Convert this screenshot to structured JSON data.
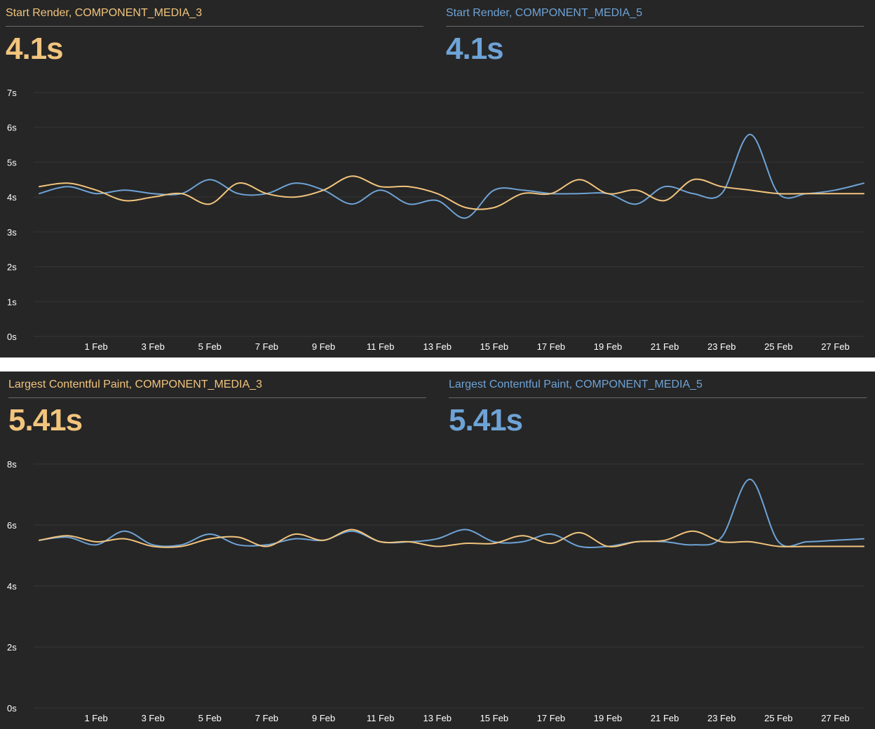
{
  "colors": {
    "background": "#262626",
    "series_a": "#f2c47d",
    "series_b": "#6ea3d6",
    "gridline": "#353535"
  },
  "panels": [
    {
      "metrics": [
        {
          "title": "Start Render, COMPONENT_MEDIA_3",
          "value": "4.1s",
          "color": "#f2c47d"
        },
        {
          "title": "Start Render, COMPONENT_MEDIA_5",
          "value": "4.1s",
          "color": "#6ea3d6"
        }
      ]
    },
    {
      "metrics": [
        {
          "title": "Largest Contentful Paint, COMPONENT_MEDIA_3",
          "value": "5.41s",
          "color": "#f2c47d"
        },
        {
          "title": "Largest Contentful Paint, COMPONENT_MEDIA_5",
          "value": "5.41s",
          "color": "#6ea3d6"
        }
      ]
    }
  ],
  "chart_data": [
    {
      "type": "line",
      "x": [
        "30 Jan",
        "31 Jan",
        "1 Feb",
        "2 Feb",
        "3 Feb",
        "4 Feb",
        "5 Feb",
        "6 Feb",
        "7 Feb",
        "8 Feb",
        "9 Feb",
        "10 Feb",
        "11 Feb",
        "12 Feb",
        "13 Feb",
        "14 Feb",
        "15 Feb",
        "16 Feb",
        "17 Feb",
        "18 Feb",
        "19 Feb",
        "20 Feb",
        "21 Feb",
        "22 Feb",
        "23 Feb",
        "24 Feb",
        "25 Feb",
        "26 Feb",
        "27 Feb",
        "28 Feb"
      ],
      "x_ticks": [
        "1 Feb",
        "3 Feb",
        "5 Feb",
        "7 Feb",
        "9 Feb",
        "11 Feb",
        "13 Feb",
        "15 Feb",
        "17 Feb",
        "19 Feb",
        "21 Feb",
        "23 Feb",
        "25 Feb",
        "27 Feb"
      ],
      "y_ticks": [
        "0s",
        "1s",
        "2s",
        "3s",
        "4s",
        "5s",
        "6s",
        "7s"
      ],
      "ylim": [
        0,
        7
      ],
      "grid": true,
      "series": [
        {
          "name": "COMPONENT_MEDIA_3",
          "color": "#f2c47d",
          "values": [
            4.3,
            4.4,
            4.2,
            3.9,
            4.0,
            4.1,
            3.8,
            4.4,
            4.1,
            4.0,
            4.2,
            4.6,
            4.3,
            4.3,
            4.1,
            3.7,
            3.7,
            4.1,
            4.1,
            4.5,
            4.1,
            4.2,
            3.9,
            4.5,
            4.3,
            4.2,
            4.1,
            4.1,
            4.1,
            4.1
          ]
        },
        {
          "name": "COMPONENT_MEDIA_5",
          "color": "#6ea3d6",
          "values": [
            4.1,
            4.3,
            4.1,
            4.2,
            4.1,
            4.1,
            4.5,
            4.1,
            4.1,
            4.4,
            4.2,
            3.8,
            4.2,
            3.8,
            3.9,
            3.4,
            4.2,
            4.2,
            4.1,
            4.1,
            4.1,
            3.8,
            4.3,
            4.1,
            4.1,
            5.8,
            4.1,
            4.1,
            4.2,
            4.4
          ]
        }
      ]
    },
    {
      "type": "line",
      "x": [
        "30 Jan",
        "31 Jan",
        "1 Feb",
        "2 Feb",
        "3 Feb",
        "4 Feb",
        "5 Feb",
        "6 Feb",
        "7 Feb",
        "8 Feb",
        "9 Feb",
        "10 Feb",
        "11 Feb",
        "12 Feb",
        "13 Feb",
        "14 Feb",
        "15 Feb",
        "16 Feb",
        "17 Feb",
        "18 Feb",
        "19 Feb",
        "20 Feb",
        "21 Feb",
        "22 Feb",
        "23 Feb",
        "24 Feb",
        "25 Feb",
        "26 Feb",
        "27 Feb",
        "28 Feb"
      ],
      "x_ticks": [
        "1 Feb",
        "3 Feb",
        "5 Feb",
        "7 Feb",
        "9 Feb",
        "11 Feb",
        "13 Feb",
        "15 Feb",
        "17 Feb",
        "19 Feb",
        "21 Feb",
        "23 Feb",
        "25 Feb",
        "27 Feb"
      ],
      "y_ticks": [
        "0s",
        "2s",
        "4s",
        "6s",
        "8s"
      ],
      "ylim": [
        0,
        8
      ],
      "grid": true,
      "series": [
        {
          "name": "COMPONENT_MEDIA_3",
          "color": "#f2c47d",
          "values": [
            5.5,
            5.65,
            5.45,
            5.55,
            5.3,
            5.3,
            5.55,
            5.6,
            5.3,
            5.7,
            5.5,
            5.85,
            5.45,
            5.45,
            5.3,
            5.4,
            5.4,
            5.65,
            5.4,
            5.75,
            5.3,
            5.45,
            5.5,
            5.8,
            5.45,
            5.45,
            5.3,
            5.3,
            5.3,
            5.3
          ]
        },
        {
          "name": "COMPONENT_MEDIA_5",
          "color": "#6ea3d6",
          "values": [
            5.5,
            5.6,
            5.35,
            5.8,
            5.35,
            5.35,
            5.7,
            5.35,
            5.35,
            5.55,
            5.5,
            5.8,
            5.45,
            5.45,
            5.55,
            5.85,
            5.45,
            5.45,
            5.7,
            5.3,
            5.3,
            5.45,
            5.45,
            5.35,
            5.6,
            7.5,
            5.45,
            5.45,
            5.5,
            5.55
          ]
        }
      ]
    }
  ]
}
